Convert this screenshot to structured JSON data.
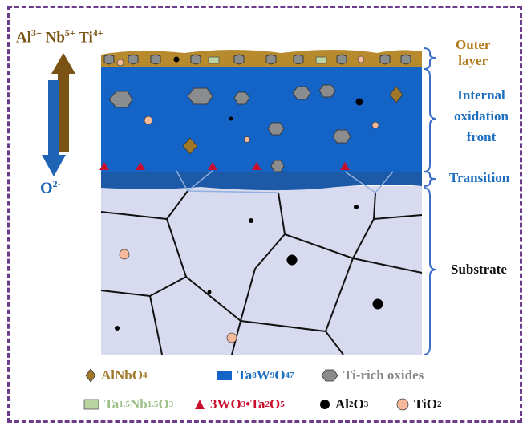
{
  "ions": {
    "al": "Al",
    "al_sup": "3+",
    "nb": "Nb",
    "nb_sup": "5+",
    "ti": "Ti",
    "ti_sup": "4+",
    "o": "O",
    "o_sup": "2-"
  },
  "layers": {
    "outer": [
      "Outer",
      "layer"
    ],
    "internal": [
      "Internal",
      "oxidation",
      "front"
    ],
    "transition": "Transition",
    "substrate": "Substrate"
  },
  "legend": {
    "alnbo4": {
      "text": "AlNbO",
      "sub": "4"
    },
    "tawo": {
      "p1": "Ta",
      "s1": "8",
      "p2": "W",
      "s2": "9",
      "p3": "O",
      "s3": "47"
    },
    "ti_rich": "Ti-rich oxides",
    "tanbo": {
      "p1": "Ta",
      "s1": "1.5",
      "p2": "Nb",
      "s2": "1.5",
      "p3": "O",
      "s3": "3"
    },
    "wo_ta": {
      "p1": "3WO",
      "s1": "3",
      "p2": "•Ta",
      "s2": "2",
      "p3": "O",
      "s3": "5"
    },
    "al2o3": {
      "p1": "Al",
      "s1": "2",
      "p2": "O",
      "s2": "3"
    },
    "tio2": {
      "p1": "TiO",
      "s1": "2"
    }
  },
  "colors": {
    "frame": "#6b3c8c",
    "outer_layer": "#b88a2e",
    "outer_text": "#b07a1a",
    "internal_layer": "#1464c8",
    "internal_text": "#1f6fc0",
    "transition": "#1c5aa8",
    "substrate": "#d8dbef",
    "brace": "#3b6fc6",
    "ti_rich": "#8a8c8e",
    "tio2": "#f6b99a",
    "alnbo4": "#a0782a",
    "tanbo": "#b9d3a1",
    "tanbo_text": "#9cbf86",
    "wo_ta": "#c8102e",
    "up_arrow": "#7a5214",
    "down_arrow": "#1f63b5"
  }
}
